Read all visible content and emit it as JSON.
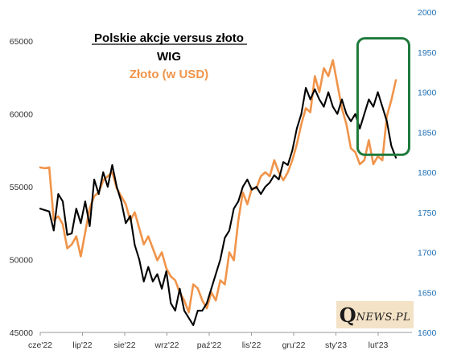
{
  "chart_data": {
    "type": "line",
    "title": "Polskie akcje versus złoto",
    "legend_placement": "top-center",
    "grid": false,
    "x": [
      "cze'22",
      "lip'22",
      "sie'22",
      "wrz'22",
      "paź'22",
      "lis'22",
      "gru'22",
      "sty'23",
      "lut'23"
    ],
    "y_left": {
      "ticks": [
        "45000",
        "50000",
        "55000",
        "60000",
        "65000"
      ],
      "range": [
        45000,
        67000
      ]
    },
    "y_right": {
      "ticks": [
        "1600",
        "1650",
        "1700",
        "1750",
        "1800",
        "1850",
        "1900",
        "1950",
        "2000"
      ],
      "range": [
        1600,
        2000
      ]
    },
    "series": [
      {
        "name": "WIG",
        "axis": "left",
        "color": "#000000",
        "values": [
          [
            0,
            53500
          ],
          [
            1,
            53400
          ],
          [
            2,
            53300
          ],
          [
            3,
            52000
          ],
          [
            4,
            54500
          ],
          [
            5,
            54000
          ],
          [
            6,
            51700
          ],
          [
            7,
            51800
          ],
          [
            8,
            53500
          ],
          [
            9,
            52500
          ],
          [
            10,
            54000
          ],
          [
            11,
            52300
          ],
          [
            12,
            55500
          ],
          [
            13,
            54500
          ],
          [
            14,
            56000
          ],
          [
            15,
            55000
          ],
          [
            16,
            56500
          ],
          [
            17,
            55000
          ],
          [
            18,
            54000
          ],
          [
            19,
            52500
          ],
          [
            20,
            53000
          ],
          [
            21,
            51000
          ],
          [
            22,
            50000
          ],
          [
            23,
            48500
          ],
          [
            24,
            49500
          ],
          [
            25,
            48500
          ],
          [
            26,
            49000
          ],
          [
            27,
            48000
          ],
          [
            28,
            49200
          ],
          [
            29,
            47000
          ],
          [
            30,
            46500
          ],
          [
            31,
            48000
          ],
          [
            32,
            46500
          ],
          [
            33,
            46000
          ],
          [
            34,
            45500
          ],
          [
            35,
            46500
          ],
          [
            36,
            46500
          ],
          [
            37,
            47000
          ],
          [
            38,
            48000
          ],
          [
            39,
            49000
          ],
          [
            40,
            50000
          ],
          [
            41,
            51500
          ],
          [
            42,
            52000
          ],
          [
            43,
            53500
          ],
          [
            44,
            54000
          ],
          [
            45,
            55000
          ],
          [
            46,
            55500
          ],
          [
            47,
            54800
          ],
          [
            48,
            55000
          ],
          [
            49,
            54500
          ],
          [
            50,
            55000
          ],
          [
            51,
            55300
          ],
          [
            52,
            55800
          ],
          [
            53,
            55500
          ],
          [
            54,
            56700
          ],
          [
            55,
            56500
          ],
          [
            56,
            57500
          ],
          [
            57,
            59000
          ],
          [
            58,
            60000
          ],
          [
            59,
            61800
          ],
          [
            60,
            61000
          ],
          [
            61,
            61700
          ],
          [
            62,
            61000
          ],
          [
            63,
            60500
          ],
          [
            64,
            61500
          ],
          [
            65,
            60500
          ],
          [
            66,
            60000
          ],
          [
            67,
            61000
          ],
          [
            68,
            60000
          ],
          [
            69,
            59500
          ],
          [
            70,
            60000
          ],
          [
            71,
            59000
          ],
          [
            72,
            60000
          ],
          [
            73,
            61000
          ],
          [
            74,
            60500
          ],
          [
            75,
            61500
          ],
          [
            76,
            60500
          ],
          [
            77,
            59500
          ],
          [
            78,
            57800
          ],
          [
            79,
            57000
          ]
        ]
      },
      {
        "name": "Złoto (w USD)",
        "axis": "right",
        "color": "#f0944a",
        "values": [
          [
            0,
            1806
          ],
          [
            1,
            1805
          ],
          [
            2,
            1806
          ],
          [
            3,
            1740
          ],
          [
            4,
            1745
          ],
          [
            5,
            1735
          ],
          [
            6,
            1705
          ],
          [
            7,
            1710
          ],
          [
            8,
            1720
          ],
          [
            9,
            1695
          ],
          [
            10,
            1725
          ],
          [
            11,
            1755
          ],
          [
            12,
            1770
          ],
          [
            13,
            1775
          ],
          [
            14,
            1790
          ],
          [
            15,
            1795
          ],
          [
            16,
            1800
          ],
          [
            17,
            1780
          ],
          [
            18,
            1770
          ],
          [
            19,
            1760
          ],
          [
            20,
            1740
          ],
          [
            21,
            1750
          ],
          [
            22,
            1730
          ],
          [
            23,
            1710
          ],
          [
            24,
            1720
          ],
          [
            25,
            1705
          ],
          [
            26,
            1690
          ],
          [
            27,
            1700
          ],
          [
            28,
            1680
          ],
          [
            29,
            1670
          ],
          [
            30,
            1665
          ],
          [
            31,
            1650
          ],
          [
            32,
            1640
          ],
          [
            33,
            1625
          ],
          [
            34,
            1660
          ],
          [
            35,
            1655
          ],
          [
            36,
            1640
          ],
          [
            37,
            1630
          ],
          [
            38,
            1650
          ],
          [
            39,
            1640
          ],
          [
            40,
            1665
          ],
          [
            41,
            1660
          ],
          [
            42,
            1700
          ],
          [
            43,
            1690
          ],
          [
            44,
            1740
          ],
          [
            45,
            1775
          ],
          [
            46,
            1760
          ],
          [
            47,
            1780
          ],
          [
            48,
            1780
          ],
          [
            49,
            1795
          ],
          [
            50,
            1800
          ],
          [
            51,
            1795
          ],
          [
            52,
            1815
          ],
          [
            53,
            1800
          ],
          [
            54,
            1790
          ],
          [
            55,
            1800
          ],
          [
            56,
            1815
          ],
          [
            57,
            1835
          ],
          [
            58,
            1860
          ],
          [
            59,
            1880
          ],
          [
            60,
            1875
          ],
          [
            61,
            1920
          ],
          [
            62,
            1900
          ],
          [
            63,
            1930
          ],
          [
            64,
            1920
          ],
          [
            65,
            1940
          ],
          [
            66,
            1910
          ],
          [
            67,
            1880
          ],
          [
            68,
            1860
          ],
          [
            69,
            1830
          ],
          [
            70,
            1825
          ],
          [
            71,
            1810
          ],
          [
            72,
            1815
          ],
          [
            73,
            1840
          ],
          [
            74,
            1810
          ],
          [
            75,
            1820
          ],
          [
            76,
            1815
          ],
          [
            77,
            1870
          ],
          [
            78,
            1890
          ],
          [
            79,
            1915
          ]
        ]
      }
    ]
  },
  "logo": {
    "q": "Q",
    "rest": "NEWS.PL"
  },
  "highlight": {
    "color": "#1e7a3c",
    "x_from": 70.5,
    "x_to": 79.8,
    "y_from": 57200,
    "y_to": 65200
  }
}
